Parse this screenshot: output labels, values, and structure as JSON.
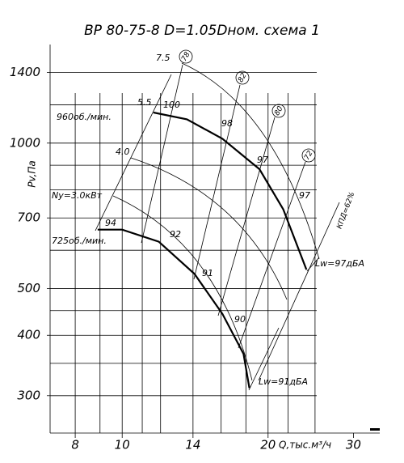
{
  "chart_data": {
    "type": "line",
    "title": "ВР 80-75-8 D=1.05Dном. схема 1",
    "x_label": "Q,тыс.м³/ч",
    "y_label": "Pv,Па",
    "xlog": true,
    "ylog": true,
    "grid": true,
    "xlim": [
      7.1,
      34
    ],
    "ylim": [
      251,
      1600
    ],
    "xticks": [
      8,
      10,
      14,
      20,
      30
    ],
    "yticks": [
      300,
      400,
      500,
      700,
      1000,
      1400
    ],
    "xgrid": [
      8,
      9,
      10,
      11,
      12,
      14,
      16,
      18,
      20,
      22,
      25
    ],
    "ygrid": [
      300,
      350,
      400,
      450,
      500,
      600,
      700,
      800,
      900,
      1000,
      1200,
      1400
    ],
    "series": [
      {
        "name": "960об./мин.",
        "color": "#000000",
        "x": [
          11.6,
          13.6,
          16.1,
          19.2,
          21.5,
          24.0
        ],
        "values": [
          1157,
          1120,
          1021,
          883,
          729,
          547
        ]
      },
      {
        "name": "725об./мин.",
        "color": "#000000",
        "x": [
          8.9,
          10.0,
          11.9,
          14.1,
          16.1,
          17.8,
          18.3
        ],
        "values": [
          662,
          662,
          625,
          536,
          443,
          366,
          311
        ]
      }
    ],
    "annotations": [
      "100",
      "98",
      "97",
      "97",
      "94",
      "92",
      "91",
      "90",
      "7.5",
      "5.5",
      "4.0",
      "Ny=3.0кВт",
      "78",
      "82",
      "80",
      "72",
      "КПД=62%",
      "Lw=97дБА",
      "Lw=91дБА"
    ]
  }
}
